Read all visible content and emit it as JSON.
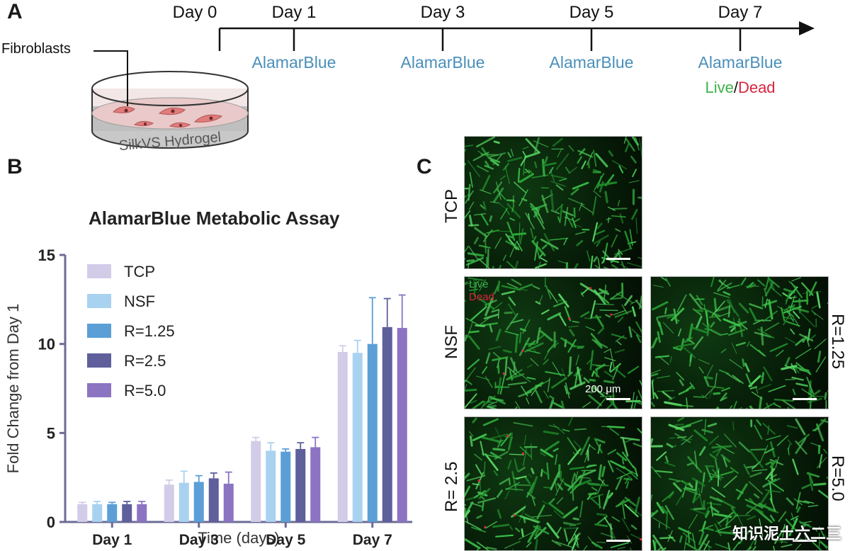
{
  "panel_a": {
    "letter": "A",
    "days": [
      "Day 0",
      "Day 1",
      "Day 3",
      "Day 5",
      "Day 7"
    ],
    "assays": [
      "AlamarBlue",
      "AlamarBlue",
      "AlamarBlue",
      "AlamarBlue"
    ],
    "live_label": "Live",
    "slash": "/",
    "dead_label": "Dead",
    "cells_label": "Fibroblasts",
    "dish_label": "SilkVS Hydrogel",
    "colors": {
      "assay": "#4a8fb9",
      "live": "#3db34a",
      "dead": "#d9243d"
    }
  },
  "panel_b": {
    "letter": "B"
  },
  "chart_data": {
    "type": "bar",
    "title": "AlamarBlue Metabolic Assay",
    "xlabel": "Time (days)",
    "ylabel": "Fold Change from Day 1",
    "categories": [
      "Day 1",
      "Day 3",
      "Day 5",
      "Day 7"
    ],
    "ylim": [
      0,
      15
    ],
    "yticks": [
      0,
      5,
      10,
      15
    ],
    "legend_position": "top-left",
    "grid": false,
    "series": [
      {
        "name": "TCP",
        "color": "#d3cce8",
        "values": [
          1.0,
          2.1,
          4.55,
          9.55
        ],
        "errors": [
          0.1,
          0.25,
          0.2,
          0.35
        ]
      },
      {
        "name": "NSF",
        "color": "#a9d2f0",
        "values": [
          1.0,
          2.2,
          4.0,
          9.5
        ],
        "errors": [
          0.15,
          0.65,
          0.45,
          0.7
        ]
      },
      {
        "name": "R=1.25",
        "color": "#5b9fd6",
        "values": [
          1.0,
          2.25,
          3.95,
          10.0
        ],
        "errors": [
          0.1,
          0.35,
          0.15,
          2.6
        ]
      },
      {
        "name": "R=2.5",
        "color": "#5f5f9c",
        "values": [
          1.0,
          2.45,
          4.1,
          10.95
        ],
        "errors": [
          0.15,
          0.3,
          0.35,
          1.6
        ]
      },
      {
        "name": "R=5.0",
        "color": "#8c74c2",
        "values": [
          1.0,
          2.15,
          4.2,
          10.9
        ],
        "errors": [
          0.15,
          0.65,
          0.55,
          1.85
        ]
      }
    ]
  },
  "panel_c": {
    "letter": "C",
    "labels": {
      "tcp": "TCP",
      "nsf": "NSF",
      "r125": "R=1.25",
      "r25": "R= 2.5",
      "r50": "R=5.0"
    },
    "overlay_live": "Live",
    "overlay_dead": "Dead",
    "scale_text": "200 μm"
  },
  "watermark": "知识泥土六二三"
}
